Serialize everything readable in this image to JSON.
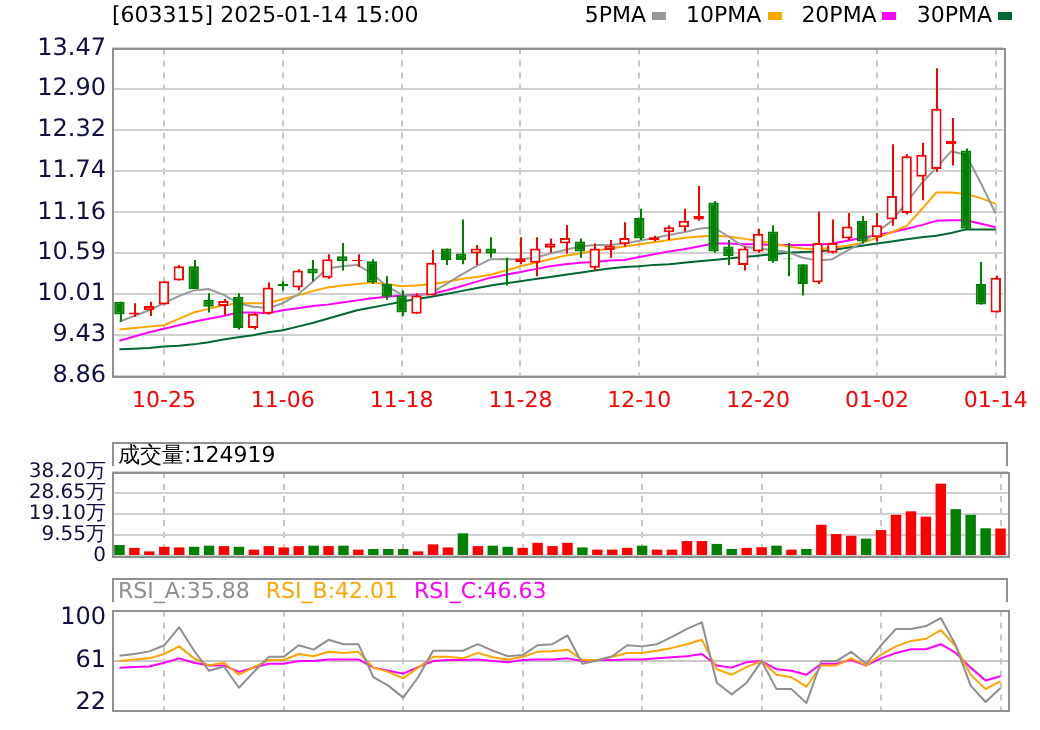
{
  "chart_data": [
    {
      "type": "candlestick",
      "title": "[603315] 2025-01-14 15:00",
      "categories": [
        null,
        null,
        null,
        "10-25",
        null,
        null,
        null,
        null,
        null,
        null,
        null,
        "11-06",
        null,
        null,
        null,
        null,
        null,
        null,
        null,
        "11-18",
        null,
        null,
        null,
        null,
        null,
        null,
        null,
        "11-28",
        null,
        null,
        null,
        null,
        null,
        null,
        null,
        "12-10",
        null,
        null,
        null,
        null,
        null,
        null,
        null,
        "12-20",
        null,
        null,
        null,
        null,
        null,
        null,
        null,
        "01-02",
        null,
        null,
        null,
        null,
        null,
        null,
        null,
        "01-14"
      ],
      "ohlc": [
        [
          9.9,
          9.9,
          9.62,
          9.72
        ],
        [
          9.72,
          9.88,
          9.69,
          9.75
        ],
        [
          9.78,
          9.9,
          9.7,
          9.84
        ],
        [
          9.86,
          10.19,
          9.86,
          10.19
        ],
        [
          10.2,
          10.42,
          10.2,
          10.4
        ],
        [
          10.4,
          10.49,
          10.08,
          10.08
        ],
        [
          9.93,
          10.02,
          9.75,
          9.83
        ],
        [
          9.84,
          9.94,
          9.7,
          9.91
        ],
        [
          9.97,
          10.02,
          9.51,
          9.53
        ],
        [
          9.53,
          9.75,
          9.51,
          9.73
        ],
        [
          9.73,
          10.17,
          9.72,
          10.1
        ],
        [
          10.15,
          10.19,
          10.06,
          10.12
        ],
        [
          10.1,
          10.36,
          10.06,
          10.34
        ],
        [
          10.37,
          10.49,
          10.19,
          10.3
        ],
        [
          10.24,
          10.57,
          10.22,
          10.5
        ],
        [
          10.54,
          10.73,
          10.34,
          10.47
        ],
        [
          10.47,
          10.57,
          10.39,
          10.49
        ],
        [
          10.47,
          10.5,
          10.15,
          10.17
        ],
        [
          10.15,
          10.26,
          9.93,
          9.97
        ],
        [
          9.99,
          10.06,
          9.7,
          9.75
        ],
        [
          9.73,
          10.02,
          9.73,
          9.99
        ],
        [
          9.99,
          10.63,
          9.99,
          10.45
        ],
        [
          10.65,
          10.65,
          10.42,
          10.49
        ],
        [
          10.58,
          11.06,
          10.43,
          10.49
        ],
        [
          10.58,
          10.7,
          10.42,
          10.65
        ],
        [
          10.65,
          10.81,
          10.52,
          10.58
        ],
        [
          10.51,
          10.52,
          10.13,
          10.5
        ],
        [
          10.46,
          10.81,
          10.43,
          10.51
        ],
        [
          10.45,
          10.81,
          10.26,
          10.65
        ],
        [
          10.66,
          10.79,
          10.59,
          10.72
        ],
        [
          10.72,
          10.98,
          10.58,
          10.8
        ],
        [
          10.75,
          10.79,
          10.52,
          10.61
        ],
        [
          10.38,
          10.72,
          10.34,
          10.65
        ],
        [
          10.63,
          10.77,
          10.52,
          10.69
        ],
        [
          10.71,
          11.02,
          10.68,
          10.8
        ],
        [
          11.08,
          11.21,
          10.77,
          10.79
        ],
        [
          10.77,
          10.83,
          10.75,
          10.81
        ],
        [
          10.88,
          10.98,
          10.77,
          10.95
        ],
        [
          10.95,
          11.21,
          10.89,
          11.04
        ],
        [
          11.06,
          11.53,
          11.04,
          11.11
        ],
        [
          11.3,
          11.32,
          10.59,
          10.61
        ],
        [
          10.68,
          10.77,
          10.42,
          10.54
        ],
        [
          10.42,
          10.68,
          10.34,
          10.65
        ],
        [
          10.61,
          10.93,
          10.59,
          10.86
        ],
        [
          10.89,
          10.98,
          10.45,
          10.47
        ],
        [
          10.51,
          10.73,
          10.26,
          10.5
        ],
        [
          10.43,
          10.43,
          9.99,
          10.15
        ],
        [
          10.17,
          11.17,
          10.15,
          10.73
        ],
        [
          10.59,
          11.06,
          10.58,
          10.73
        ],
        [
          10.79,
          11.15,
          10.77,
          10.96
        ],
        [
          11.04,
          11.11,
          10.72,
          10.75
        ],
        [
          10.81,
          11.15,
          10.75,
          10.98
        ],
        [
          11.06,
          12.12,
          10.97,
          11.39
        ],
        [
          11.15,
          11.98,
          11.13,
          11.95
        ],
        [
          11.66,
          12.14,
          11.33,
          11.97
        ],
        [
          11.77,
          13.19,
          11.73,
          12.62
        ],
        [
          12.12,
          12.49,
          11.82,
          12.17
        ],
        [
          12.03,
          12.06,
          10.93,
          10.93
        ],
        [
          10.15,
          10.46,
          9.86,
          9.86
        ],
        [
          9.75,
          10.27,
          9.75,
          10.24
        ]
      ],
      "colors": [
        "#008000",
        "#ff0000",
        "#ff0000",
        "#ff0000",
        "#ff0000",
        "#008000",
        "#008000",
        "#ff0000",
        "#008000",
        "#ff0000",
        "#ff0000",
        "#008000",
        "#ff0000",
        "#008000",
        "#ff0000",
        "#008000",
        "#ff0000",
        "#008000",
        "#008000",
        "#008000",
        "#ff0000",
        "#ff0000",
        "#008000",
        "#008000",
        "#ff0000",
        "#008000",
        "#008000",
        "#ff0000",
        "#ff0000",
        "#ff0000",
        "#ff0000",
        "#008000",
        "#ff0000",
        "#ff0000",
        "#ff0000",
        "#008000",
        "#ff0000",
        "#ff0000",
        "#ff0000",
        "#ff0000",
        "#008000",
        "#008000",
        "#ff0000",
        "#ff0000",
        "#008000",
        "#008000",
        "#008000",
        "#ff0000",
        "#ff0000",
        "#ff0000",
        "#008000",
        "#ff0000",
        "#ff0000",
        "#ff0000",
        "#ff0000",
        "#ff0000",
        "#ff0000",
        "#008000",
        "#008000",
        "#ff0000"
      ],
      "series": [
        {
          "name": "5PMA",
          "type": "line",
          "color": "#999999",
          "values": [
            9.62,
            9.7,
            9.78,
            9.88,
            9.98,
            10.06,
            10.08,
            10.0,
            9.88,
            9.83,
            9.81,
            9.88,
            10.0,
            10.18,
            10.37,
            10.4,
            10.42,
            10.3,
            10.12,
            10.0,
            9.98,
            10.03,
            10.15,
            10.28,
            10.4,
            10.5,
            10.5,
            10.5,
            10.52,
            10.58,
            10.63,
            10.68,
            10.7,
            10.7,
            10.72,
            10.76,
            10.8,
            10.84,
            10.88,
            10.93,
            10.95,
            10.82,
            10.68,
            10.65,
            10.63,
            10.6,
            10.52,
            10.48,
            10.5,
            10.62,
            10.73,
            10.88,
            11.04,
            11.3,
            11.57,
            11.79,
            12.02,
            11.97,
            11.57,
            11.14
          ]
        },
        {
          "name": "10PMA",
          "type": "line",
          "color": "#ffa500",
          "values": [
            9.51,
            9.53,
            9.55,
            9.57,
            9.66,
            9.75,
            9.8,
            9.85,
            9.88,
            9.88,
            9.88,
            9.94,
            9.99,
            10.05,
            10.1,
            10.13,
            10.15,
            10.17,
            10.15,
            10.12,
            10.13,
            10.15,
            10.18,
            10.22,
            10.25,
            10.28,
            10.34,
            10.4,
            10.45,
            10.5,
            10.55,
            10.58,
            10.62,
            10.65,
            10.68,
            10.71,
            10.74,
            10.77,
            10.8,
            10.82,
            10.83,
            10.82,
            10.79,
            10.76,
            10.72,
            10.68,
            10.65,
            10.64,
            10.66,
            10.69,
            10.73,
            10.8,
            10.88,
            10.97,
            11.2,
            11.44,
            11.44,
            11.42,
            11.36,
            11.28
          ]
        },
        {
          "name": "20PMA",
          "type": "line",
          "color": "#ff00ff",
          "values": [
            9.35,
            9.41,
            9.47,
            9.52,
            9.57,
            9.62,
            9.66,
            9.7,
            9.75,
            9.75,
            9.74,
            9.78,
            9.81,
            9.84,
            9.86,
            9.89,
            9.92,
            9.95,
            9.97,
            9.99,
            10.0,
            10.01,
            10.06,
            10.12,
            10.18,
            10.24,
            10.28,
            10.32,
            10.36,
            10.4,
            10.43,
            10.45,
            10.46,
            10.48,
            10.49,
            10.53,
            10.57,
            10.61,
            10.64,
            10.68,
            10.72,
            10.72,
            10.71,
            10.71,
            10.7,
            10.7,
            10.7,
            10.7,
            10.72,
            10.76,
            10.8,
            10.84,
            10.88,
            10.93,
            10.98,
            11.04,
            11.05,
            11.05,
            11.0,
            10.95
          ]
        },
        {
          "name": "30PMA",
          "type": "line",
          "color": "#006633",
          "values": [
            9.23,
            9.24,
            9.25,
            9.27,
            9.28,
            9.3,
            9.33,
            9.37,
            9.4,
            9.43,
            9.47,
            9.5,
            9.55,
            9.6,
            9.66,
            9.72,
            9.78,
            9.82,
            9.86,
            9.9,
            9.94,
            9.97,
            10.01,
            10.05,
            10.09,
            10.13,
            10.16,
            10.19,
            10.22,
            10.25,
            10.28,
            10.31,
            10.34,
            10.37,
            10.39,
            10.4,
            10.42,
            10.43,
            10.45,
            10.47,
            10.49,
            10.51,
            10.53,
            10.55,
            10.57,
            10.59,
            10.6,
            10.61,
            10.63,
            10.66,
            10.69,
            10.72,
            10.75,
            10.78,
            10.81,
            10.83,
            10.87,
            10.92,
            10.92,
            10.92
          ]
        }
      ],
      "ylim": [
        8.86,
        13.47
      ],
      "yticks": [
        8.86,
        9.43,
        10.01,
        10.59,
        11.16,
        11.74,
        12.32,
        {
          "value": 12.9,
          "label": "12.90"
        },
        13.47
      ],
      "grid": true,
      "legend": "top right",
      "marker": "none"
    },
    {
      "type": "bar",
      "annotations": [
        "成交量:124919"
      ],
      "categories": [
        null,
        null,
        null,
        null,
        null,
        null,
        null,
        null,
        null,
        null,
        null,
        null,
        null,
        null,
        null,
        null,
        null,
        null,
        null,
        null,
        null,
        null,
        null,
        null,
        null,
        null,
        null,
        null,
        null,
        null,
        null,
        null,
        null,
        null,
        null,
        null,
        null,
        null,
        null,
        null,
        null,
        null,
        null,
        null,
        null,
        null,
        null,
        null,
        null,
        null,
        null,
        null,
        null,
        null,
        null,
        null,
        null,
        null,
        null,
        null
      ],
      "values": [
        5.0,
        3.7,
        2.1,
        4.2,
        3.9,
        4.2,
        4.7,
        4.5,
        4.2,
        2.9,
        4.5,
        3.9,
        4.5,
        4.7,
        4.5,
        4.7,
        2.9,
        3.2,
        3.2,
        3.2,
        2.1,
        5.3,
        3.9,
        10.3,
        4.5,
        4.7,
        4.2,
        3.7,
        6.0,
        4.5,
        6.0,
        3.9,
        2.9,
        2.9,
        3.7,
        4.7,
        2.9,
        2.9,
        6.8,
        6.8,
        5.5,
        3.2,
        3.7,
        4.0,
        4.7,
        2.9,
        3.2,
        14.2,
        10.0,
        9.2,
        7.9,
        11.8,
        18.7,
        20.3,
        17.9,
        32.9,
        21.3,
        18.7,
        12.6,
        12.49
      ],
      "colors": [
        "#008000",
        "#ff0000",
        "#ff0000",
        "#ff0000",
        "#ff0000",
        "#008000",
        "#008000",
        "#ff0000",
        "#008000",
        "#ff0000",
        "#ff0000",
        "#ff0000",
        "#ff0000",
        "#008000",
        "#ff0000",
        "#008000",
        "#ff0000",
        "#008000",
        "#008000",
        "#008000",
        "#ff0000",
        "#ff0000",
        "#ff0000",
        "#008000",
        "#ff0000",
        "#008000",
        "#008000",
        "#ff0000",
        "#ff0000",
        "#ff0000",
        "#ff0000",
        "#008000",
        "#ff0000",
        "#ff0000",
        "#ff0000",
        "#008000",
        "#ff0000",
        "#ff0000",
        "#ff0000",
        "#ff0000",
        "#008000",
        "#008000",
        "#ff0000",
        "#ff0000",
        "#008000",
        "#ff0000",
        "#008000",
        "#ff0000",
        "#ff0000",
        "#ff0000",
        "#008000",
        "#ff0000",
        "#ff0000",
        "#ff0000",
        "#ff0000",
        "#ff0000",
        "#008000",
        "#008000",
        "#008000",
        "#ff0000"
      ],
      "ylim": [
        0,
        38.2
      ],
      "yticks": [
        0,
        {
          "value": 9.55,
          "label": "9.55万"
        },
        {
          "value": 19.1,
          "label": "19.10万"
        },
        {
          "value": 28.65,
          "label": "28.65万"
        },
        {
          "value": 38.2,
          "label": "38.20万"
        }
      ],
      "grid": true,
      "tick_labels": "y"
    },
    {
      "type": "line",
      "categories": [
        null,
        null,
        null,
        null,
        null,
        null,
        null,
        null,
        null,
        null,
        null,
        null,
        null,
        null,
        null,
        null,
        null,
        null,
        null,
        null,
        null,
        null,
        null,
        null,
        null,
        null,
        null,
        null,
        null,
        null,
        null,
        null,
        null,
        null,
        null,
        null,
        null,
        null,
        null,
        null,
        null,
        null,
        null,
        null,
        null,
        null,
        null,
        null,
        null,
        null,
        null,
        null,
        null,
        null,
        null,
        null,
        null,
        null,
        null,
        null
      ],
      "series": [
        {
          "name": "RSI_A:35.88",
          "color": "#909090",
          "values": [
            65.4,
            67,
            69.4,
            75,
            91.6,
            70,
            51.6,
            55.5,
            36,
            50.6,
            64.4,
            64.4,
            75,
            71,
            80,
            76,
            76,
            45.7,
            38,
            27,
            45.7,
            70,
            70,
            70,
            76,
            70,
            65,
            66,
            75,
            76,
            84,
            58,
            61,
            65,
            75,
            74,
            76,
            82.7,
            90,
            96,
            40.7,
            30,
            40.7,
            60.5,
            34.8,
            34.8,
            22,
            60.5,
            60.5,
            69,
            58,
            75,
            90,
            90,
            92.6,
            100,
            75,
            38,
            23,
            35.88
          ]
        },
        {
          "name": "RSI_B:42.01",
          "color": "#ffa500",
          "values": [
            60.5,
            62,
            63,
            67,
            74,
            63,
            56.5,
            59,
            48,
            55,
            61.5,
            61.5,
            67,
            65,
            69,
            68,
            69,
            54.5,
            50.6,
            44.7,
            54.5,
            64.4,
            64.4,
            63,
            68,
            64,
            62,
            64.4,
            69,
            69.5,
            71,
            61.5,
            61.5,
            64.4,
            68,
            68,
            70,
            72.6,
            76,
            80,
            53,
            48,
            55,
            60.5,
            48,
            45.7,
            37,
            56.5,
            56.5,
            63,
            56.5,
            66.4,
            74,
            79,
            81,
            89,
            74,
            48,
            34.8,
            42.01
          ]
        },
        {
          "name": "RSI_C:46.63",
          "color": "#ff00ff",
          "values": [
            54.5,
            55,
            55.5,
            59,
            63,
            59,
            56.5,
            56.5,
            50.6,
            54.5,
            58,
            58,
            60.5,
            60.5,
            62,
            62,
            62,
            54.5,
            51.6,
            49,
            55,
            60.5,
            61.5,
            61.5,
            62,
            60.5,
            59.5,
            61.5,
            62,
            62,
            63,
            60.5,
            61.5,
            61.5,
            62,
            62,
            63,
            64,
            65,
            67,
            56.5,
            54.5,
            59.5,
            60.5,
            53,
            51.6,
            48,
            58,
            58,
            61.5,
            56.5,
            63,
            68,
            71.3,
            71.3,
            76,
            68,
            54.5,
            42.7,
            46.63
          ]
        }
      ],
      "ylim": [
        16,
        107
      ],
      "yticks": [
        22,
        61,
        100
      ],
      "ref_lines": [
        {
          "axis": "y",
          "value": 61,
          "color": "#c8c8c8"
        }
      ],
      "grid": "x",
      "legend": "top left",
      "tick_labels": "y",
      "marker": "none"
    }
  ]
}
